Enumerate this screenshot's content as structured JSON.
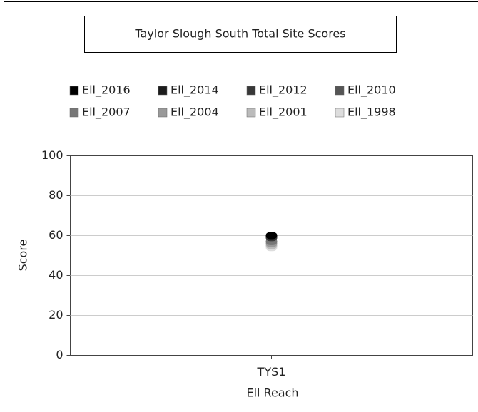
{
  "chart_data": {
    "type": "scatter",
    "title": "Taylor Slough South Total Site Scores",
    "x_label": "Ell Reach",
    "y_label": "Score",
    "categories": [
      "TYS1"
    ],
    "series": [
      {
        "name": "Ell_2016",
        "color": "#000000",
        "values": [
          60
        ]
      },
      {
        "name": "Ell_2014",
        "color": "#1c1c1c",
        "values": [
          60
        ]
      },
      {
        "name": "Ell_2012",
        "color": "#383838",
        "values": [
          59
        ]
      },
      {
        "name": "Ell_2010",
        "color": "#555555",
        "values": [
          59
        ]
      },
      {
        "name": "Ell_2007",
        "color": "#777777",
        "values": [
          57
        ]
      },
      {
        "name": "Ell_2004",
        "color": "#999999",
        "values": [
          56
        ]
      },
      {
        "name": "Ell_2001",
        "color": "#bbbbbb",
        "values": [
          55
        ]
      },
      {
        "name": "Ell_1998",
        "color": "#dddddd",
        "values": [
          54
        ]
      }
    ],
    "ylim": [
      0,
      100
    ],
    "yticks": [
      0,
      20,
      40,
      60,
      80,
      100
    ],
    "grid": true
  }
}
